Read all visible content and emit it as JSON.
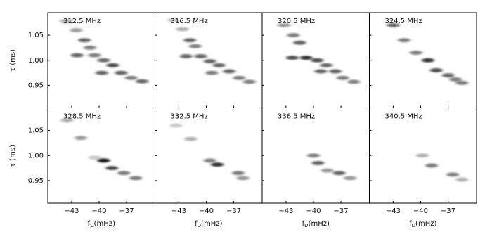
{
  "axes": {
    "xlabel": {
      "main": "f",
      "sub": "D",
      "rest": "(mHz)"
    },
    "ylabel": "τ (ms)",
    "xlim": [
      -45.6,
      -33.9
    ],
    "ylim": [
      0.905,
      1.095
    ],
    "xticks": [
      {
        "value": -43,
        "label": "−43"
      },
      {
        "value": -40,
        "label": "−40"
      },
      {
        "value": -37,
        "label": "−37"
      }
    ],
    "yticks": [
      0.95,
      {
        "value": 1.0,
        "label": "1.00"
      },
      1.05
    ]
  },
  "chart_data": [
    {
      "type": "heatmap",
      "title": "312.5 MHz",
      "x": [
        -43.6,
        -42.5,
        -41.6,
        -41,
        -42.4,
        -40.5,
        -39.5,
        -38.5,
        -39.7,
        -37.6,
        -36.5,
        -35.3
      ],
      "y": [
        1.078,
        1.06,
        1.04,
        1.025,
        1.01,
        1.01,
        1.0,
        0.99,
        0.975,
        0.975,
        0.965,
        0.958
      ],
      "values": [
        0.3,
        0.4,
        0.6,
        0.5,
        0.6,
        0.5,
        0.6,
        0.7,
        0.6,
        0.6,
        0.5,
        0.6
      ]
    },
    {
      "type": "heatmap",
      "title": "316.5 MHz",
      "x": [
        -43.6,
        -42.6,
        -41.8,
        -41.2,
        -42.2,
        -40.6,
        -39.6,
        -38.6,
        -39.4,
        -37.5,
        -36.4,
        -35.3
      ],
      "y": [
        1.08,
        1.062,
        1.04,
        1.028,
        1.008,
        1.008,
        0.998,
        0.99,
        0.975,
        0.978,
        0.965,
        0.957
      ],
      "values": [
        0.2,
        0.3,
        0.6,
        0.5,
        0.6,
        0.6,
        0.6,
        0.6,
        0.5,
        0.6,
        0.5,
        0.5
      ]
    },
    {
      "type": "heatmap",
      "title": "320.5 MHz",
      "x": [
        -43.2,
        -42.2,
        -41.5,
        -42.3,
        -40.8,
        -39.6,
        -38.6,
        -39.2,
        -37.6,
        -36.8,
        -35.6
      ],
      "y": [
        1.07,
        1.05,
        1.035,
        1.005,
        1.005,
        1.0,
        0.99,
        0.978,
        0.978,
        0.965,
        0.957
      ],
      "values": [
        0.4,
        0.5,
        0.6,
        0.7,
        0.8,
        0.7,
        0.6,
        0.6,
        0.6,
        0.5,
        0.5
      ]
    },
    {
      "type": "heatmap",
      "title": "324.5 MHz",
      "x": [
        -43,
        -41.8,
        -40.5,
        -39.2,
        -38.3,
        -37,
        -36.2,
        -35.5
      ],
      "y": [
        1.07,
        1.04,
        1.015,
        1.0,
        0.98,
        0.97,
        0.962,
        0.955
      ],
      "values": [
        0.6,
        0.5,
        0.5,
        0.8,
        0.7,
        0.6,
        0.5,
        0.5
      ]
    },
    {
      "type": "heatmap",
      "title": "328.5 MHz",
      "x": [
        -43.5,
        -42,
        -39.5,
        -38.6,
        -37.3,
        -36,
        -40.5
      ],
      "y": [
        1.07,
        1.035,
        0.99,
        0.975,
        0.965,
        0.955,
        0.996
      ],
      "values": [
        0.3,
        0.4,
        0.9,
        0.7,
        0.5,
        0.5,
        0.2
      ]
    },
    {
      "type": "heatmap",
      "title": "332.5 MHz",
      "x": [
        -43.3,
        -41.7,
        -39.6,
        -38.8,
        -36.5,
        -36
      ],
      "y": [
        1.06,
        1.033,
        0.99,
        0.982,
        0.965,
        0.955
      ],
      "values": [
        0.2,
        0.3,
        0.5,
        0.8,
        0.5,
        0.4
      ]
    },
    {
      "type": "heatmap",
      "title": "336.5 MHz",
      "x": [
        -40,
        -39.5,
        -38.5,
        -37.2,
        -36
      ],
      "y": [
        1.0,
        0.985,
        0.97,
        0.965,
        0.955
      ],
      "values": [
        0.5,
        0.6,
        0.4,
        0.6,
        0.4
      ]
    },
    {
      "type": "heatmap",
      "title": "340.5 MHz",
      "x": [
        -39.8,
        -38.8,
        -36.5,
        -35.5
      ],
      "y": [
        1.0,
        0.98,
        0.962,
        0.952
      ],
      "values": [
        0.3,
        0.5,
        0.5,
        0.3
      ]
    }
  ]
}
